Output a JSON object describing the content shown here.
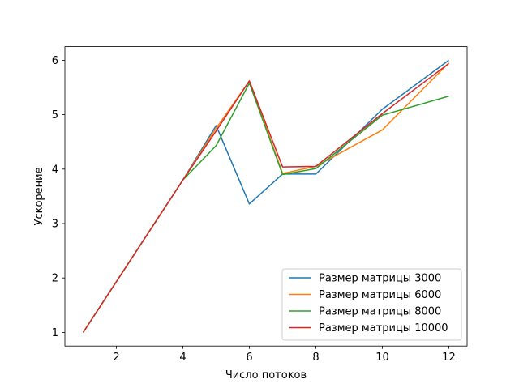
{
  "chart_data": {
    "type": "line",
    "title": "",
    "xlabel": "Число потоков",
    "ylabel": "Ускорение",
    "xlim": [
      0.45,
      12.55
    ],
    "ylim": [
      0.75,
      6.25
    ],
    "xticks": [
      2,
      4,
      6,
      8,
      10,
      12
    ],
    "yticks": [
      1,
      2,
      3,
      4,
      5,
      6
    ],
    "grid": false,
    "legend_position": "lower-right",
    "x": [
      1,
      4,
      5,
      6,
      7,
      8,
      10,
      12
    ],
    "series": [
      {
        "name": "Размер матрицы 3000",
        "color": "#1f77b4",
        "values": [
          1.0,
          3.8,
          4.8,
          3.36,
          3.91,
          3.91,
          5.1,
          6.0
        ]
      },
      {
        "name": "Размер матрицы 6000",
        "color": "#ff7f0e",
        "values": [
          1.0,
          3.8,
          4.75,
          5.62,
          3.92,
          4.05,
          4.72,
          5.95
        ]
      },
      {
        "name": "Размер матрицы 8000",
        "color": "#2ca02c",
        "values": [
          1.0,
          3.8,
          4.43,
          5.58,
          3.9,
          4.01,
          4.99,
          5.34
        ]
      },
      {
        "name": "Размер матрицы 10000",
        "color": "#d62728",
        "values": [
          1.0,
          3.8,
          4.7,
          5.62,
          4.04,
          4.05,
          5.02,
          5.94
        ]
      }
    ]
  }
}
